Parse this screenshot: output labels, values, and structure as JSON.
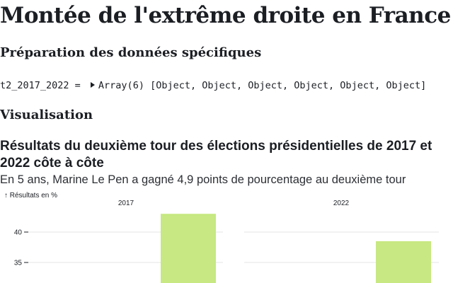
{
  "page": {
    "title": "Montée de l'extrême droite en France",
    "section_prep": "Préparation des données spécifiques",
    "cell": {
      "variable": "t2_2017_2022 = ",
      "type": "Array(6)",
      "items": "[Object, Object, Object, Object, Object, Object]"
    },
    "section_vis": "Visualisation"
  },
  "chart": {
    "title": "Résultats du deuxième tour des élections présidentielles de 2017 et 2022 côte à côte",
    "subtitle": "En 5 ans, Marine Le Pen a gagné 4,9 points de pourcentage au deuxième tour",
    "y_label": "↑ Résultats en %",
    "bar_color": "#c7e882",
    "grid_color": "#e6e6e6"
  },
  "chart_data": {
    "type": "bar",
    "facets": [
      "2017",
      "2022"
    ],
    "series": [
      {
        "facet": "2017",
        "value": 43
      },
      {
        "facet": "2022",
        "value": 38.5
      }
    ],
    "yticks": [
      35,
      40
    ],
    "y_label": "↑ Résultats en %"
  }
}
